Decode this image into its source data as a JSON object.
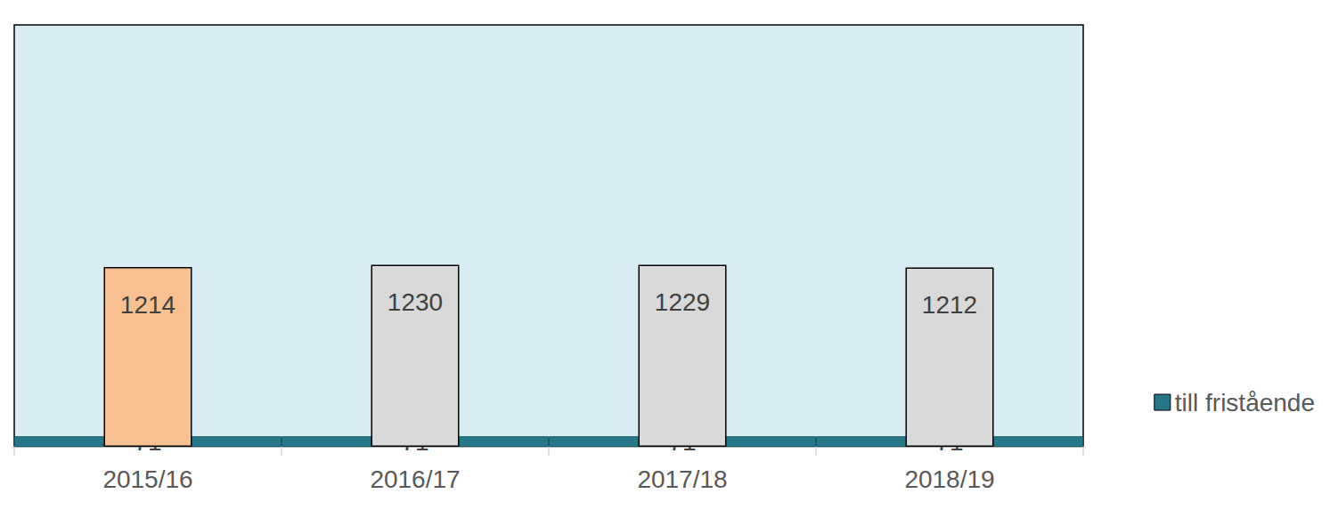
{
  "chart_data": {
    "type": "bar",
    "categories": [
      "2015/16",
      "2016/17",
      "2017/18",
      "2018/19"
    ],
    "series": [
      {
        "name": "till fristående",
        "color": "#25778a",
        "values": [
          71,
          71,
          71,
          71
        ]
      },
      {
        "colors": [
          "#f9c192",
          "#d9d9d9",
          "#d9d9d9",
          "#d9d9d9"
        ],
        "values": [
          1214,
          1230,
          1229,
          1212
        ]
      }
    ],
    "ylim": [
      0,
      2850
    ],
    "legend": "right",
    "data_labels": true,
    "tick_labels": "x",
    "grid": false
  }
}
